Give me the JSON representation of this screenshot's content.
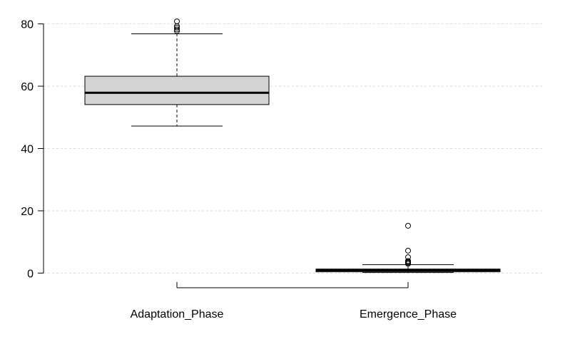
{
  "chart_data": {
    "type": "boxplot",
    "title": "",
    "xlabel": "",
    "ylabel": "",
    "ylim": [
      -1.5,
      81.5
    ],
    "yticks": [
      0,
      20,
      40,
      60,
      80
    ],
    "grid": true,
    "categories": [
      "Adaptation_Phase",
      "Emergence_Phase"
    ],
    "series": [
      {
        "category": "Adaptation_Phase",
        "whisker_low": 47.2,
        "q1": 54.1,
        "median": 57.9,
        "q3": 63.2,
        "whisker_high": 76.8,
        "outliers": [
          77.7,
          78.2,
          78.8,
          79.3,
          80.8
        ]
      },
      {
        "category": "Emergence_Phase",
        "whisker_low": 0.2,
        "q1": 0.4,
        "median": 0.9,
        "q3": 1.3,
        "whisker_high": 2.7,
        "outliers": [
          3.0,
          3.3,
          3.6,
          3.9,
          5.1,
          7.2,
          15.2
        ]
      }
    ],
    "colors": {
      "box_fill": "#d3d3d3",
      "stroke": "#000000",
      "grid": "#d9d9d9"
    }
  }
}
